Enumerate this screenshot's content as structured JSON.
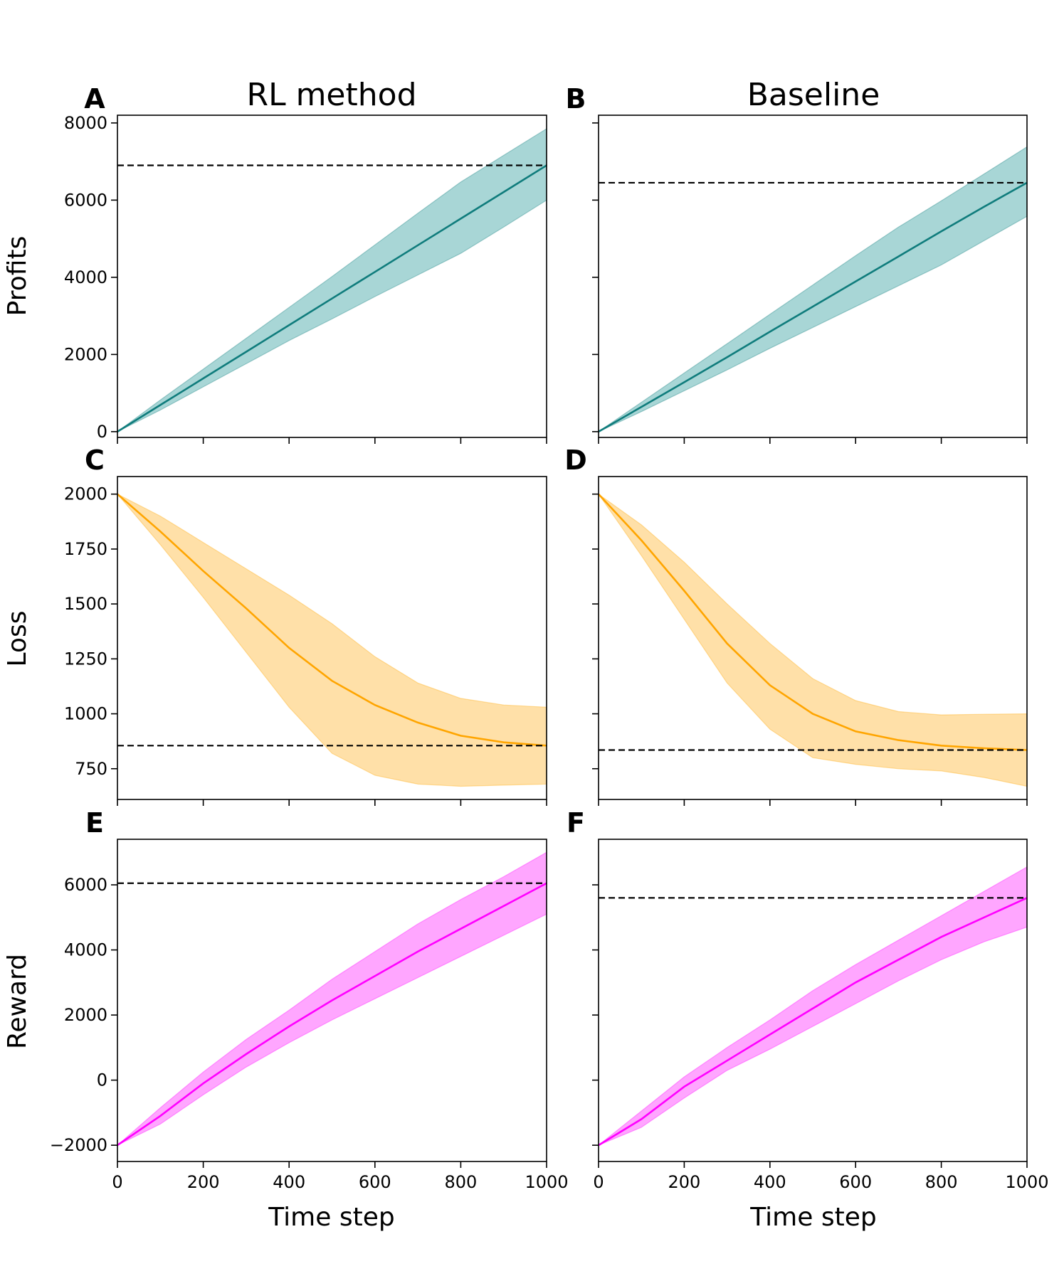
{
  "figure": {
    "column_titles": [
      "RL method",
      "Baseline"
    ],
    "xlabel": "Time step",
    "x_ticks": [
      0,
      200,
      400,
      600,
      800,
      1000
    ],
    "xlim": [
      0,
      1000
    ]
  },
  "chart_data": [
    {
      "type": "line",
      "panel": "A",
      "row_label": "Profits",
      "color": "#0f7c7c",
      "fill": "#a8d6d6",
      "ylim": [
        -150,
        8200
      ],
      "y_ticks": [
        0,
        2000,
        4000,
        6000,
        8000
      ],
      "show_y_tick_labels": true,
      "x": [
        0,
        100,
        200,
        300,
        400,
        500,
        600,
        700,
        800,
        900,
        1000
      ],
      "mean": [
        0,
        690,
        1380,
        2070,
        2760,
        3450,
        4140,
        4830,
        5520,
        6210,
        6900
      ],
      "upper": [
        0,
        820,
        1620,
        2420,
        3220,
        4020,
        4840,
        5660,
        6470,
        7160,
        7850
      ],
      "lower": [
        0,
        560,
        1160,
        1760,
        2360,
        2920,
        3500,
        4060,
        4620,
        5300,
        6000
      ],
      "reference": 6900
    },
    {
      "type": "line",
      "panel": "B",
      "row_label": "",
      "color": "#0f7c7c",
      "fill": "#a8d6d6",
      "ylim": [
        -150,
        8200
      ],
      "y_ticks": [
        0,
        2000,
        4000,
        6000,
        8000
      ],
      "show_y_tick_labels": false,
      "x": [
        0,
        100,
        200,
        300,
        400,
        500,
        600,
        700,
        800,
        900,
        1000
      ],
      "mean": [
        0,
        640,
        1280,
        1930,
        2590,
        3240,
        3890,
        4540,
        5190,
        5830,
        6450
      ],
      "upper": [
        0,
        760,
        1520,
        2280,
        3040,
        3800,
        4560,
        5300,
        5980,
        6680,
        7380
      ],
      "lower": [
        0,
        520,
        1060,
        1600,
        2160,
        2700,
        3240,
        3780,
        4320,
        4950,
        5580
      ],
      "reference": 6450
    },
    {
      "type": "line",
      "panel": "C",
      "row_label": "Loss",
      "color": "#ffa500",
      "fill": "#ffe0a8",
      "ylim": [
        610,
        2080
      ],
      "y_ticks": [
        750,
        1000,
        1250,
        1500,
        1750,
        2000
      ],
      "show_y_tick_labels": true,
      "x": [
        0,
        100,
        200,
        300,
        400,
        500,
        600,
        700,
        800,
        900,
        1000
      ],
      "mean": [
        2000,
        1830,
        1650,
        1480,
        1300,
        1150,
        1040,
        960,
        900,
        870,
        855
      ],
      "upper": [
        2000,
        1900,
        1780,
        1660,
        1540,
        1410,
        1260,
        1140,
        1070,
        1040,
        1030
      ],
      "lower": [
        2000,
        1770,
        1530,
        1280,
        1030,
        820,
        720,
        680,
        670,
        675,
        680
      ],
      "reference": 855
    },
    {
      "type": "line",
      "panel": "D",
      "row_label": "",
      "color": "#ffa500",
      "fill": "#ffe0a8",
      "ylim": [
        610,
        2080
      ],
      "y_ticks": [
        750,
        1000,
        1250,
        1500,
        1750,
        2000
      ],
      "show_y_tick_labels": false,
      "x": [
        0,
        100,
        200,
        300,
        400,
        500,
        600,
        700,
        800,
        900,
        1000
      ],
      "mean": [
        2000,
        1790,
        1560,
        1320,
        1130,
        1000,
        920,
        880,
        855,
        843,
        835
      ],
      "upper": [
        2000,
        1860,
        1690,
        1500,
        1320,
        1160,
        1060,
        1010,
        995,
        998,
        1000
      ],
      "lower": [
        2000,
        1720,
        1430,
        1140,
        930,
        800,
        770,
        750,
        740,
        710,
        670
      ],
      "reference": 835
    },
    {
      "type": "line",
      "panel": "E",
      "row_label": "Reward",
      "color": "#ff00ff",
      "fill": "#ffa6ff",
      "ylim": [
        -2500,
        7400
      ],
      "y_ticks": [
        -2000,
        0,
        2000,
        4000,
        6000
      ],
      "show_y_tick_labels": true,
      "y_tick_labels": [
        "−2000",
        "0",
        "2000",
        "4000",
        "6000"
      ],
      "x": [
        0,
        100,
        200,
        300,
        400,
        500,
        600,
        700,
        800,
        900,
        1000
      ],
      "mean": [
        -2000,
        -1100,
        -100,
        800,
        1650,
        2450,
        3200,
        3950,
        4650,
        5350,
        6050
      ],
      "upper": [
        -2000,
        -850,
        250,
        1250,
        2150,
        3100,
        3950,
        4800,
        5550,
        6250,
        7000
      ],
      "lower": [
        -2000,
        -1350,
        -450,
        400,
        1150,
        1850,
        2500,
        3150,
        3800,
        4450,
        5100
      ],
      "reference": 6050
    },
    {
      "type": "line",
      "panel": "F",
      "row_label": "",
      "color": "#ff00ff",
      "fill": "#ffa6ff",
      "ylim": [
        -2500,
        7400
      ],
      "y_ticks": [
        -2000,
        0,
        2000,
        4000,
        6000
      ],
      "show_y_tick_labels": false,
      "x": [
        0,
        100,
        200,
        300,
        400,
        500,
        600,
        700,
        800,
        900,
        1000
      ],
      "mean": [
        -2000,
        -1200,
        -200,
        600,
        1400,
        2200,
        3000,
        3700,
        4400,
        5000,
        5600
      ],
      "upper": [
        -2000,
        -950,
        100,
        1000,
        1850,
        2750,
        3550,
        4300,
        5050,
        5800,
        6550
      ],
      "lower": [
        -2000,
        -1450,
        -550,
        300,
        950,
        1650,
        2350,
        3050,
        3700,
        4250,
        4700
      ],
      "reference": 5600
    }
  ]
}
